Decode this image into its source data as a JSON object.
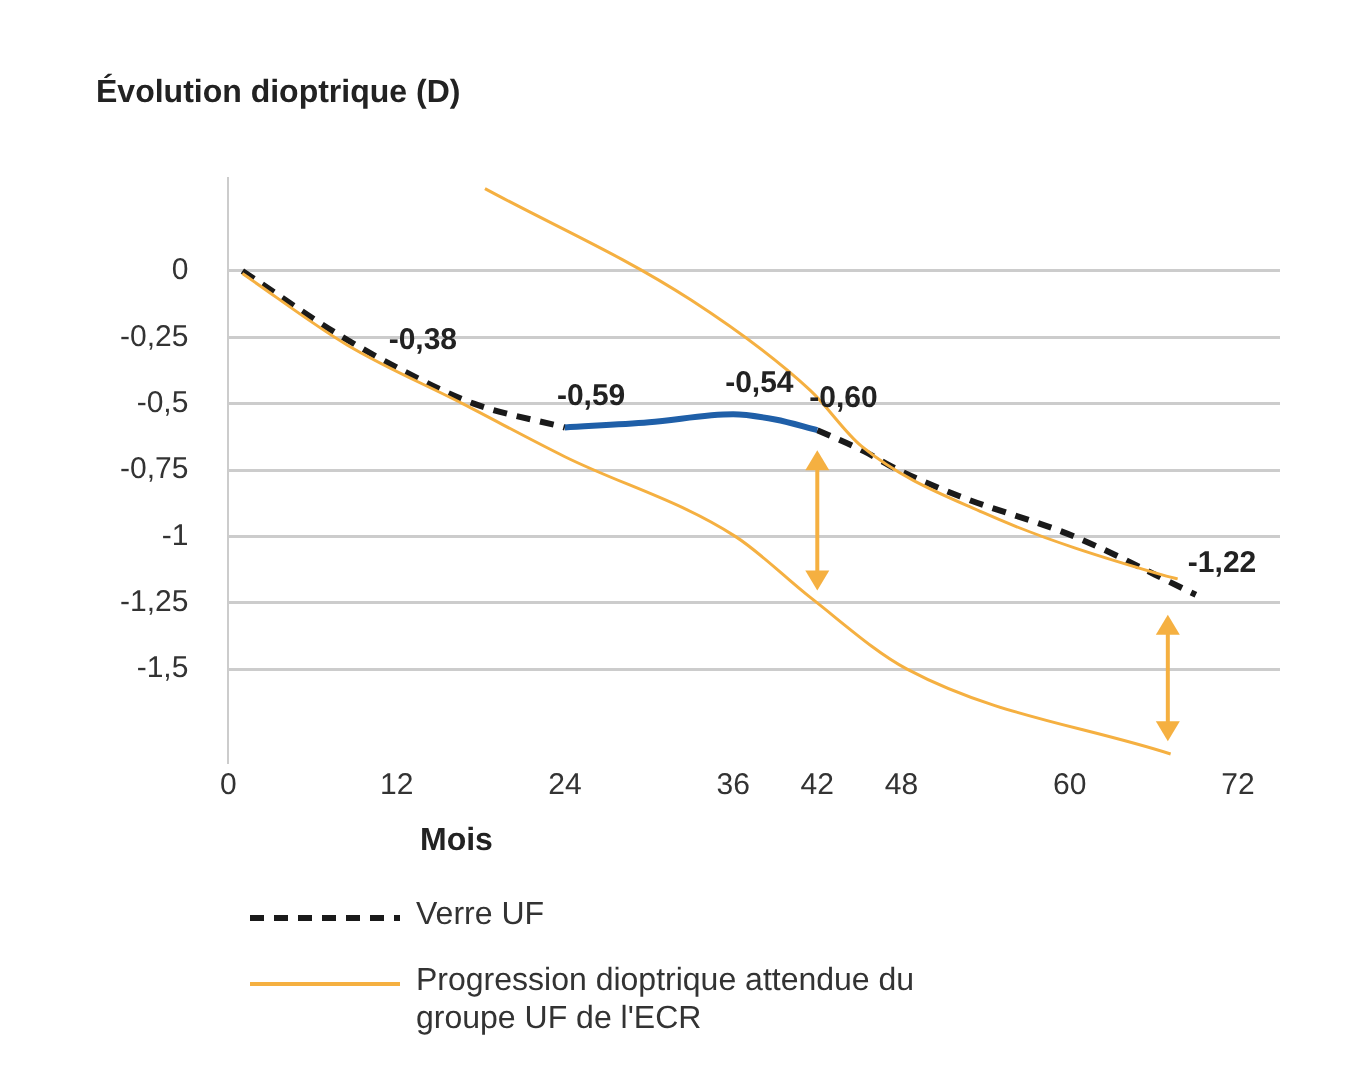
{
  "chart_data": {
    "type": "line",
    "ylabel": "Évolution dioptrique (D)",
    "xlabel": "Mois",
    "xlim": [
      0,
      75
    ],
    "ylim": [
      -1.85,
      0.35
    ],
    "xticks": [
      0,
      12,
      24,
      36,
      42,
      48,
      60,
      72
    ],
    "yticks": [
      0,
      {
        "value": -0.25,
        "label": "-0,25"
      },
      {
        "value": -0.5,
        "label": "-0,5"
      },
      {
        "value": -0.75,
        "label": "-0,75"
      },
      {
        "value": -1,
        "label": "-1"
      },
      {
        "value": -1.25,
        "label": "-1,25"
      },
      {
        "value": -1.5,
        "label": "-1,5"
      }
    ],
    "grid": "y",
    "legend": "bottom",
    "marker": "none",
    "series": [
      {
        "name": "Progression dioptrique attendue du groupe UF de l'ECR",
        "color": "#f5b041",
        "line_style": "solid",
        "x": [
          18.3,
          33,
          41.5,
          45.15,
          53.8,
          66.9,
          67.7
        ],
        "values": [
          0.31,
          -0.11,
          -0.45,
          -0.66,
          -0.91,
          -1.15,
          -1.16
        ]
      },
      {
        "color": "#f5b041",
        "line_style": "solid",
        "x": [
          1,
          8.5,
          16.7,
          24,
          36.15,
          41.5,
          48.4,
          67.2
        ],
        "values": [
          -0.01,
          -0.28,
          -0.5,
          -0.7,
          -1,
          -1.23,
          -1.5,
          -1.82
        ]
      },
      {
        "color": "#1f5fa8",
        "line_style": "solid",
        "x": [
          24,
          30,
          36,
          39,
          42
        ],
        "values": [
          -0.59,
          -0.57,
          -0.54,
          -0.56,
          -0.6
        ]
      },
      {
        "name": "Verre UF",
        "color": "#1a1a1a",
        "line_style": "dashed",
        "x": [
          1,
          7.7,
          12.6,
          17.5,
          24,
          36,
          42,
          45.35,
          47.6,
          52.2,
          60.3,
          69
        ],
        "values": [
          0,
          -0.235,
          -0.38,
          -0.5,
          -0.59,
          null,
          -0.6,
          -0.68,
          -0.745,
          -0.85,
          -1,
          -1.22
        ]
      }
    ],
    "annotations": [
      {
        "text": "-0,38",
        "x": 12,
        "y": -0.38
      },
      {
        "text": "-0,59",
        "x": 24,
        "y": -0.59
      },
      {
        "text": "-0,54",
        "x": 36,
        "y": -0.54
      },
      {
        "text": "-0,60",
        "x": 42,
        "y": -0.6
      },
      {
        "text": "-1,22",
        "x": 69,
        "y": -1.22
      }
    ]
  }
}
